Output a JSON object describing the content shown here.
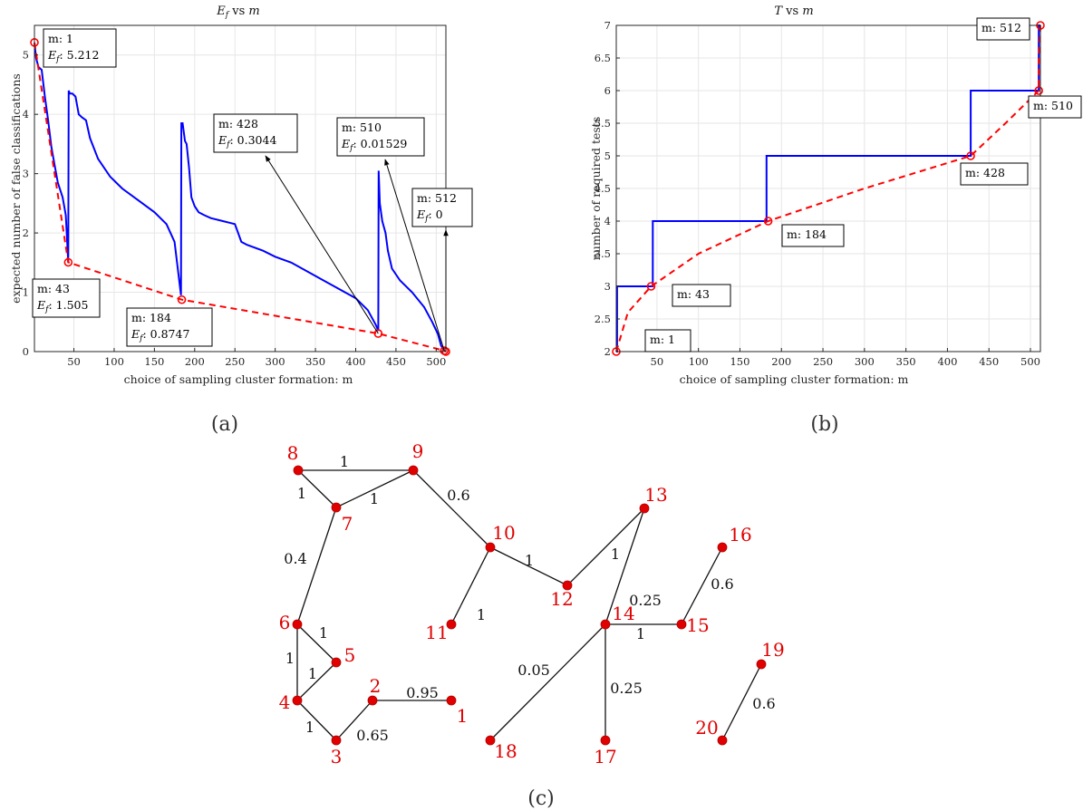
{
  "chart_data": [
    {
      "type": "line",
      "title": "E_f vs m",
      "xlabel": "choice of sampling cluster formation: m",
      "ylabel": "expected number of false classifications",
      "xlim": [
        1,
        512
      ],
      "ylim": [
        0,
        5.5
      ],
      "xticks": [
        50,
        100,
        150,
        200,
        250,
        300,
        350,
        400,
        450,
        500
      ],
      "yticks": [
        0,
        1,
        2,
        3,
        4,
        5
      ],
      "grid": true,
      "series": [
        {
          "style": "solid",
          "color": "#0000ff",
          "x": [
            1,
            3,
            6,
            10,
            14,
            18,
            22,
            26,
            30,
            36,
            40,
            43,
            43.5,
            45,
            48,
            52,
            56,
            60,
            65,
            70,
            80,
            95,
            110,
            130,
            150,
            165,
            175,
            183,
            183.5,
            185,
            188,
            190,
            193,
            196,
            200,
            205,
            212,
            220,
            235,
            250,
            258,
            265,
            285,
            300,
            320,
            340,
            360,
            380,
            400,
            415,
            425,
            428,
            428.5,
            430,
            433,
            437,
            440,
            445,
            455,
            470,
            485,
            495,
            502,
            506,
            510
          ],
          "y": [
            5.21,
            4.95,
            4.8,
            4.75,
            4.3,
            3.9,
            3.45,
            3.15,
            2.85,
            2.6,
            2.3,
            1.5,
            4.4,
            4.35,
            4.35,
            4.3,
            4.0,
            3.95,
            3.9,
            3.6,
            3.25,
            2.95,
            2.75,
            2.55,
            2.35,
            2.15,
            1.85,
            0.95,
            3.85,
            3.85,
            3.55,
            3.5,
            3.1,
            2.6,
            2.45,
            2.35,
            2.3,
            2.25,
            2.2,
            2.15,
            1.85,
            1.8,
            1.7,
            1.6,
            1.5,
            1.35,
            1.2,
            1.05,
            0.9,
            0.7,
            0.45,
            0.35,
            3.05,
            2.5,
            2.2,
            2.0,
            1.7,
            1.4,
            1.2,
            1.0,
            0.75,
            0.5,
            0.3,
            0.1,
            0.02
          ]
        },
        {
          "style": "dashed",
          "color": "#ff0000",
          "x": [
            1,
            43,
            184,
            428,
            510,
            512
          ],
          "y": [
            5.212,
            1.505,
            0.8747,
            0.3044,
            0.01529,
            0
          ]
        }
      ],
      "datatips": [
        {
          "x": 1,
          "y": 5.212,
          "m": "m: 1",
          "ef": "5.212"
        },
        {
          "x": 43,
          "y": 1.505,
          "m": "m: 43",
          "ef": "1.505"
        },
        {
          "x": 184,
          "y": 0.8747,
          "m": "m: 184",
          "ef": "0.8747"
        },
        {
          "x": 428,
          "y": 0.3044,
          "m": "m: 428",
          "ef": "0.3044"
        },
        {
          "x": 510,
          "y": 0.01529,
          "m": "m: 510",
          "ef": "0.01529"
        },
        {
          "x": 512,
          "y": 0,
          "m": "m: 512",
          "ef": "0"
        }
      ],
      "panel_label": "(a)"
    },
    {
      "type": "line",
      "title": "T vs m",
      "xlabel": "choice of sampling cluster formation: m",
      "ylabel": "number of required tests",
      "xlim": [
        1,
        512
      ],
      "ylim": [
        2,
        7
      ],
      "xticks": [
        50,
        100,
        150,
        200,
        250,
        300,
        350,
        400,
        450,
        500
      ],
      "yticks": [
        2,
        2.5,
        3,
        3.5,
        4,
        4.5,
        5,
        5.5,
        6,
        6.5,
        7
      ],
      "yticklabels": [
        "2",
        "2.5",
        "3",
        "3.5",
        "4",
        "4.5",
        "5",
        "5.5",
        "6",
        "6.5",
        "7"
      ],
      "grid": true,
      "series": [
        {
          "style": "solid",
          "color": "#0000ff",
          "x": [
            1,
            2,
            2,
            45,
            45,
            182,
            182,
            428,
            428,
            510,
            510,
            512,
            512
          ],
          "y": [
            2,
            2,
            3,
            3,
            4,
            4,
            5,
            5,
            6,
            6,
            7,
            7,
            7
          ]
        },
        {
          "style": "dashed",
          "color": "#ff0000",
          "x": [
            1,
            15,
            43,
            100,
            184,
            300,
            428,
            470,
            510,
            510,
            512
          ],
          "y": [
            2,
            2.6,
            3,
            3.5,
            4,
            4.5,
            5,
            5.5,
            6,
            6.5,
            7
          ]
        }
      ],
      "datatips": [
        {
          "x": 1,
          "y": 2,
          "m": "m: 1"
        },
        {
          "x": 43,
          "y": 3,
          "m": "m: 43"
        },
        {
          "x": 184,
          "y": 4,
          "m": "m: 184"
        },
        {
          "x": 428,
          "y": 5,
          "m": "m: 428"
        },
        {
          "x": 510,
          "y": 6,
          "m": "m: 510"
        },
        {
          "x": 512,
          "y": 7,
          "m": "m: 512"
        }
      ],
      "panel_label": "(b)"
    }
  ],
  "graph": {
    "panel_label": "(c)",
    "node_color": "#e00000",
    "nodes": [
      {
        "id": "1"
      },
      {
        "id": "2"
      },
      {
        "id": "3"
      },
      {
        "id": "4"
      },
      {
        "id": "5"
      },
      {
        "id": "6"
      },
      {
        "id": "7"
      },
      {
        "id": "8"
      },
      {
        "id": "9"
      },
      {
        "id": "10"
      },
      {
        "id": "11"
      },
      {
        "id": "12"
      },
      {
        "id": "13"
      },
      {
        "id": "14"
      },
      {
        "id": "15"
      },
      {
        "id": "16"
      },
      {
        "id": "17"
      },
      {
        "id": "18"
      },
      {
        "id": "19"
      },
      {
        "id": "20"
      }
    ],
    "edges": [
      {
        "a": "8",
        "b": "9",
        "w": "1"
      },
      {
        "a": "8",
        "b": "7",
        "w": "1"
      },
      {
        "a": "7",
        "b": "9",
        "w": "1"
      },
      {
        "a": "9",
        "b": "10",
        "w": "0.6"
      },
      {
        "a": "7",
        "b": "6",
        "w": "0.4"
      },
      {
        "a": "10",
        "b": "12",
        "w": "1"
      },
      {
        "a": "10",
        "b": "11",
        "w": "1"
      },
      {
        "a": "12",
        "b": "13",
        "w": "1"
      },
      {
        "a": "13",
        "b": "14",
        "w": "0.25"
      },
      {
        "a": "14",
        "b": "15",
        "w": "1"
      },
      {
        "a": "15",
        "b": "16",
        "w": "0.6"
      },
      {
        "a": "14",
        "b": "18",
        "w": "0.05"
      },
      {
        "a": "14",
        "b": "17",
        "w": "0.25"
      },
      {
        "a": "19",
        "b": "20",
        "w": "0.6"
      },
      {
        "a": "6",
        "b": "5",
        "w": "1"
      },
      {
        "a": "6",
        "b": "4",
        "w": "1"
      },
      {
        "a": "4",
        "b": "5",
        "w": "1"
      },
      {
        "a": "4",
        "b": "3",
        "w": "1"
      },
      {
        "a": "3",
        "b": "2",
        "w": "0.65"
      },
      {
        "a": "2",
        "b": "1",
        "w": "0.95"
      }
    ]
  }
}
